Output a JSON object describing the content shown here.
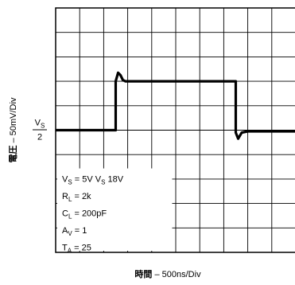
{
  "chart_data": {
    "type": "line",
    "xlabel": {
      "bold": "時間",
      "rest": " – 500ns/Div"
    },
    "ylabel": {
      "bold": "電圧",
      "rest": " – 50mV/Div"
    },
    "x_divisions": 10,
    "y_divisions": 10,
    "grid": true,
    "y_marker": {
      "numerator_main": "V",
      "numerator_sub": "S",
      "denominator": "2",
      "y_div": 5
    },
    "series": [
      {
        "points": [
          [
            0.0,
            5.0
          ],
          [
            2.5,
            5.0
          ],
          [
            2.5,
            7.0
          ],
          [
            2.6,
            7.35
          ],
          [
            2.7,
            7.25
          ],
          [
            2.8,
            7.05
          ],
          [
            2.9,
            7.0
          ],
          [
            7.5,
            7.0
          ],
          [
            7.5,
            4.9
          ],
          [
            7.6,
            4.65
          ],
          [
            7.75,
            4.9
          ],
          [
            8.0,
            4.95
          ],
          [
            10.0,
            4.95
          ]
        ]
      }
    ],
    "conditions": [
      {
        "main": "V",
        "sub": "S",
        "rest": " = 5V     V",
        "sub2": "S",
        "rest2": "     18V"
      },
      {
        "main": "R",
        "sub": "L",
        "rest": " = 2k"
      },
      {
        "main": "C",
        "sub": "L",
        "rest": " = 200pF"
      },
      {
        "main": "A",
        "sub": "V",
        "rest": " = 1"
      },
      {
        "main": "T",
        "sub": "A",
        "rest": " = 25"
      }
    ]
  }
}
